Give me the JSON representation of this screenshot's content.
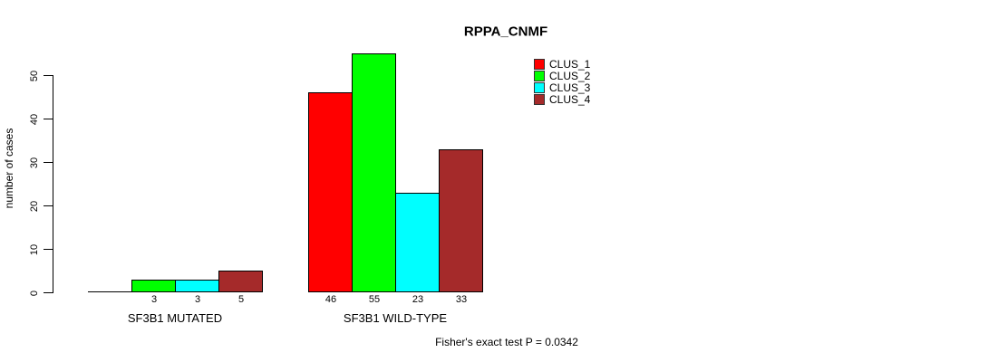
{
  "chart_data": {
    "type": "bar",
    "title": "RPPA_CNMF",
    "ylabel": "number of cases",
    "annotation": "Fisher's exact test P = 0.0342",
    "categories": [
      "SF3B1 MUTATED",
      "SF3B1 WILD-TYPE"
    ],
    "series": [
      {
        "name": "CLUS_1",
        "color": "#ff0000",
        "values": [
          0,
          46
        ]
      },
      {
        "name": "CLUS_2",
        "color": "#00ff00",
        "values": [
          3,
          55
        ]
      },
      {
        "name": "CLUS_3",
        "color": "#00ffff",
        "values": [
          3,
          23
        ]
      },
      {
        "name": "CLUS_4",
        "color": "#a52a2a",
        "values": [
          5,
          33
        ]
      }
    ],
    "yticks": [
      0,
      10,
      20,
      30,
      40,
      50
    ],
    "ylim": [
      0,
      55
    ],
    "grid": false,
    "legend_position": "top-right",
    "bar_value_labels": true,
    "value_labels": {
      "SF3B1 MUTATED": [
        "",
        "3",
        "3",
        "5"
      ],
      "SF3B1 WILD-TYPE": [
        "46",
        "55",
        "23",
        "33"
      ]
    }
  }
}
